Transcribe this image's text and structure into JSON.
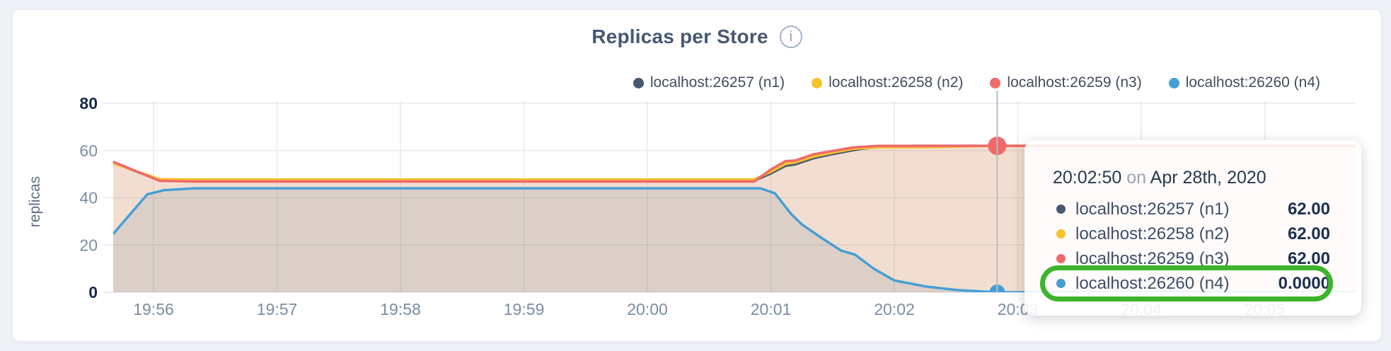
{
  "page": {
    "background": "#EEF1F6",
    "card_background": "#FFFFFF"
  },
  "header": {
    "title": "Replicas per Store",
    "info_icon_glyph": "i"
  },
  "legend": {
    "items": [
      {
        "label": "localhost:26257 (n1)",
        "color": "#475872"
      },
      {
        "label": "localhost:26258 (n2)",
        "color": "#F6C22D"
      },
      {
        "label": "localhost:26259 (n3)",
        "color": "#F16969"
      },
      {
        "label": "localhost:26260 (n4)",
        "color": "#459FD6"
      }
    ]
  },
  "tooltip": {
    "time": "20:02:50",
    "separator": "on",
    "date": "Apr 28th, 2020",
    "rows": [
      {
        "label": "localhost:26257 (n1)",
        "value": "62.00",
        "color": "#475872",
        "highlighted": false
      },
      {
        "label": "localhost:26258 (n2)",
        "value": "62.00",
        "color": "#F6C22D",
        "highlighted": false
      },
      {
        "label": "localhost:26259 (n3)",
        "value": "62.00",
        "color": "#F16969",
        "highlighted": false
      },
      {
        "label": "localhost:26260 (n4)",
        "value": "0.0000",
        "color": "#459FD6",
        "highlighted": true
      }
    ],
    "highlight_ring_color": "#3CB42C"
  },
  "chart_data": {
    "type": "area",
    "title": "Replicas per Store",
    "xlabel": "",
    "ylabel": "replicas",
    "ylim": [
      0,
      80
    ],
    "y_ticks": [
      0,
      20,
      40,
      60,
      80
    ],
    "x_ticks": [
      "19:56",
      "19:57",
      "19:58",
      "19:59",
      "20:00",
      "20:01",
      "20:02",
      "20:03",
      "20:04",
      "20:05"
    ],
    "x_start": "19:55:40",
    "x_end": "20:05:44",
    "grid": true,
    "legend_position": "top-right",
    "hover_time": "20:02:50",
    "hover_values": {
      "localhost:26257 (n1)": 62.0,
      "localhost:26258 (n2)": 62.0,
      "localhost:26259 (n3)": 62.0,
      "localhost:26260 (n4)": 0.0
    },
    "series": [
      {
        "name": "localhost:26257 (n1)",
        "color": "#475872",
        "marker_radius": 12,
        "points": [
          [
            "19:55:40",
            55.0
          ],
          [
            "19:56:03",
            47.4
          ],
          [
            "19:56:20",
            47.3
          ],
          [
            "20:00:52",
            47.3
          ],
          [
            "20:01:00",
            50.3
          ],
          [
            "20:01:07",
            53.5
          ],
          [
            "20:01:12",
            54.2
          ],
          [
            "20:01:21",
            56.8
          ],
          [
            "20:01:31",
            58.7
          ],
          [
            "20:01:40",
            60.2
          ],
          [
            "20:01:52",
            61.7
          ],
          [
            "20:02:10",
            62
          ],
          [
            "20:05:44",
            62
          ]
        ]
      },
      {
        "name": "localhost:26258 (n2)",
        "color": "#F6C22D",
        "marker_radius": 12,
        "points": [
          [
            "19:55:40",
            54.7
          ],
          [
            "19:56:03",
            47.9
          ],
          [
            "19:56:20",
            47.8
          ],
          [
            "20:00:52",
            47.8
          ],
          [
            "20:01:00",
            51.0
          ],
          [
            "20:01:07",
            54.3
          ],
          [
            "20:01:12",
            55.0
          ],
          [
            "20:01:21",
            57.5
          ],
          [
            "20:01:31",
            59.3
          ],
          [
            "20:01:40",
            60.7
          ],
          [
            "20:01:52",
            61.4
          ],
          [
            "20:02:20",
            61.5
          ],
          [
            "20:02:45",
            62
          ],
          [
            "20:05:44",
            62
          ]
        ]
      },
      {
        "name": "localhost:26259 (n3)",
        "color": "#F16969",
        "marker_radius": 13,
        "points": [
          [
            "19:55:40",
            55.4
          ],
          [
            "19:56:03",
            47.2
          ],
          [
            "19:56:20",
            46.9
          ],
          [
            "20:00:52",
            46.9
          ],
          [
            "20:01:00",
            52.0
          ],
          [
            "20:01:07",
            55.5
          ],
          [
            "20:01:12",
            55.8
          ],
          [
            "20:01:21",
            58.5
          ],
          [
            "20:01:31",
            60.0
          ],
          [
            "20:01:40",
            61.3
          ],
          [
            "20:01:52",
            62
          ],
          [
            "20:05:44",
            62
          ]
        ]
      },
      {
        "name": "localhost:26260 (n4)",
        "color": "#459FD6",
        "marker_radius": 11,
        "points": [
          [
            "19:55:40",
            24.3
          ],
          [
            "19:55:57",
            41.5
          ],
          [
            "19:56:05",
            43.2
          ],
          [
            "19:56:20",
            44.0
          ],
          [
            "20:00:55",
            44.0
          ],
          [
            "20:01:02",
            41.9
          ],
          [
            "20:01:10",
            33.0
          ],
          [
            "20:01:15",
            28.8
          ],
          [
            "20:01:25",
            22.8
          ],
          [
            "20:01:34",
            17.7
          ],
          [
            "20:01:41",
            15.9
          ],
          [
            "20:01:50",
            10.0
          ],
          [
            "20:02:00",
            5.0
          ],
          [
            "20:02:15",
            2.5
          ],
          [
            "20:02:30",
            1.0
          ],
          [
            "20:02:45",
            0.2
          ],
          [
            "20:02:50",
            0.0
          ],
          [
            "20:05:44",
            0.0
          ]
        ]
      }
    ],
    "area_fill_under_lines": "rgba(212,147,100,0.30)",
    "area_fill_under_blue": "rgba(80,110,150,0.13)"
  }
}
